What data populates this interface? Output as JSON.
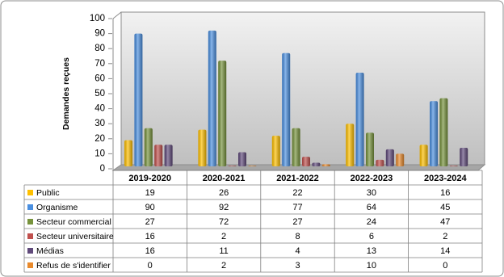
{
  "chart_data": {
    "type": "bar",
    "y_label": "Demandes reçues",
    "categories": [
      "2019-2020",
      "2020-2021",
      "2021-2022",
      "2022-2023",
      "2023-2024"
    ],
    "series": [
      {
        "name": "Public",
        "color": "#ffc000",
        "values": [
          19,
          26,
          22,
          30,
          16
        ]
      },
      {
        "name": "Organisme",
        "color": "#4a8fe0",
        "values": [
          90,
          92,
          77,
          64,
          45
        ]
      },
      {
        "name": "Secteur commercial",
        "color": "#77933c",
        "values": [
          27,
          72,
          27,
          24,
          47
        ]
      },
      {
        "name": "Secteur universitaire",
        "color": "#c0504d",
        "values": [
          16,
          2,
          8,
          6,
          2
        ]
      },
      {
        "name": "Médias",
        "color": "#604a7b",
        "values": [
          16,
          11,
          4,
          13,
          14
        ]
      },
      {
        "name": "Refus de s'identifier",
        "color": "#e98a2c",
        "values": [
          0,
          2,
          3,
          10,
          0
        ]
      }
    ],
    "ylim": [
      0,
      100
    ],
    "yticks": [
      0,
      10,
      20,
      30,
      40,
      50,
      60,
      70,
      80,
      90,
      100
    ]
  }
}
